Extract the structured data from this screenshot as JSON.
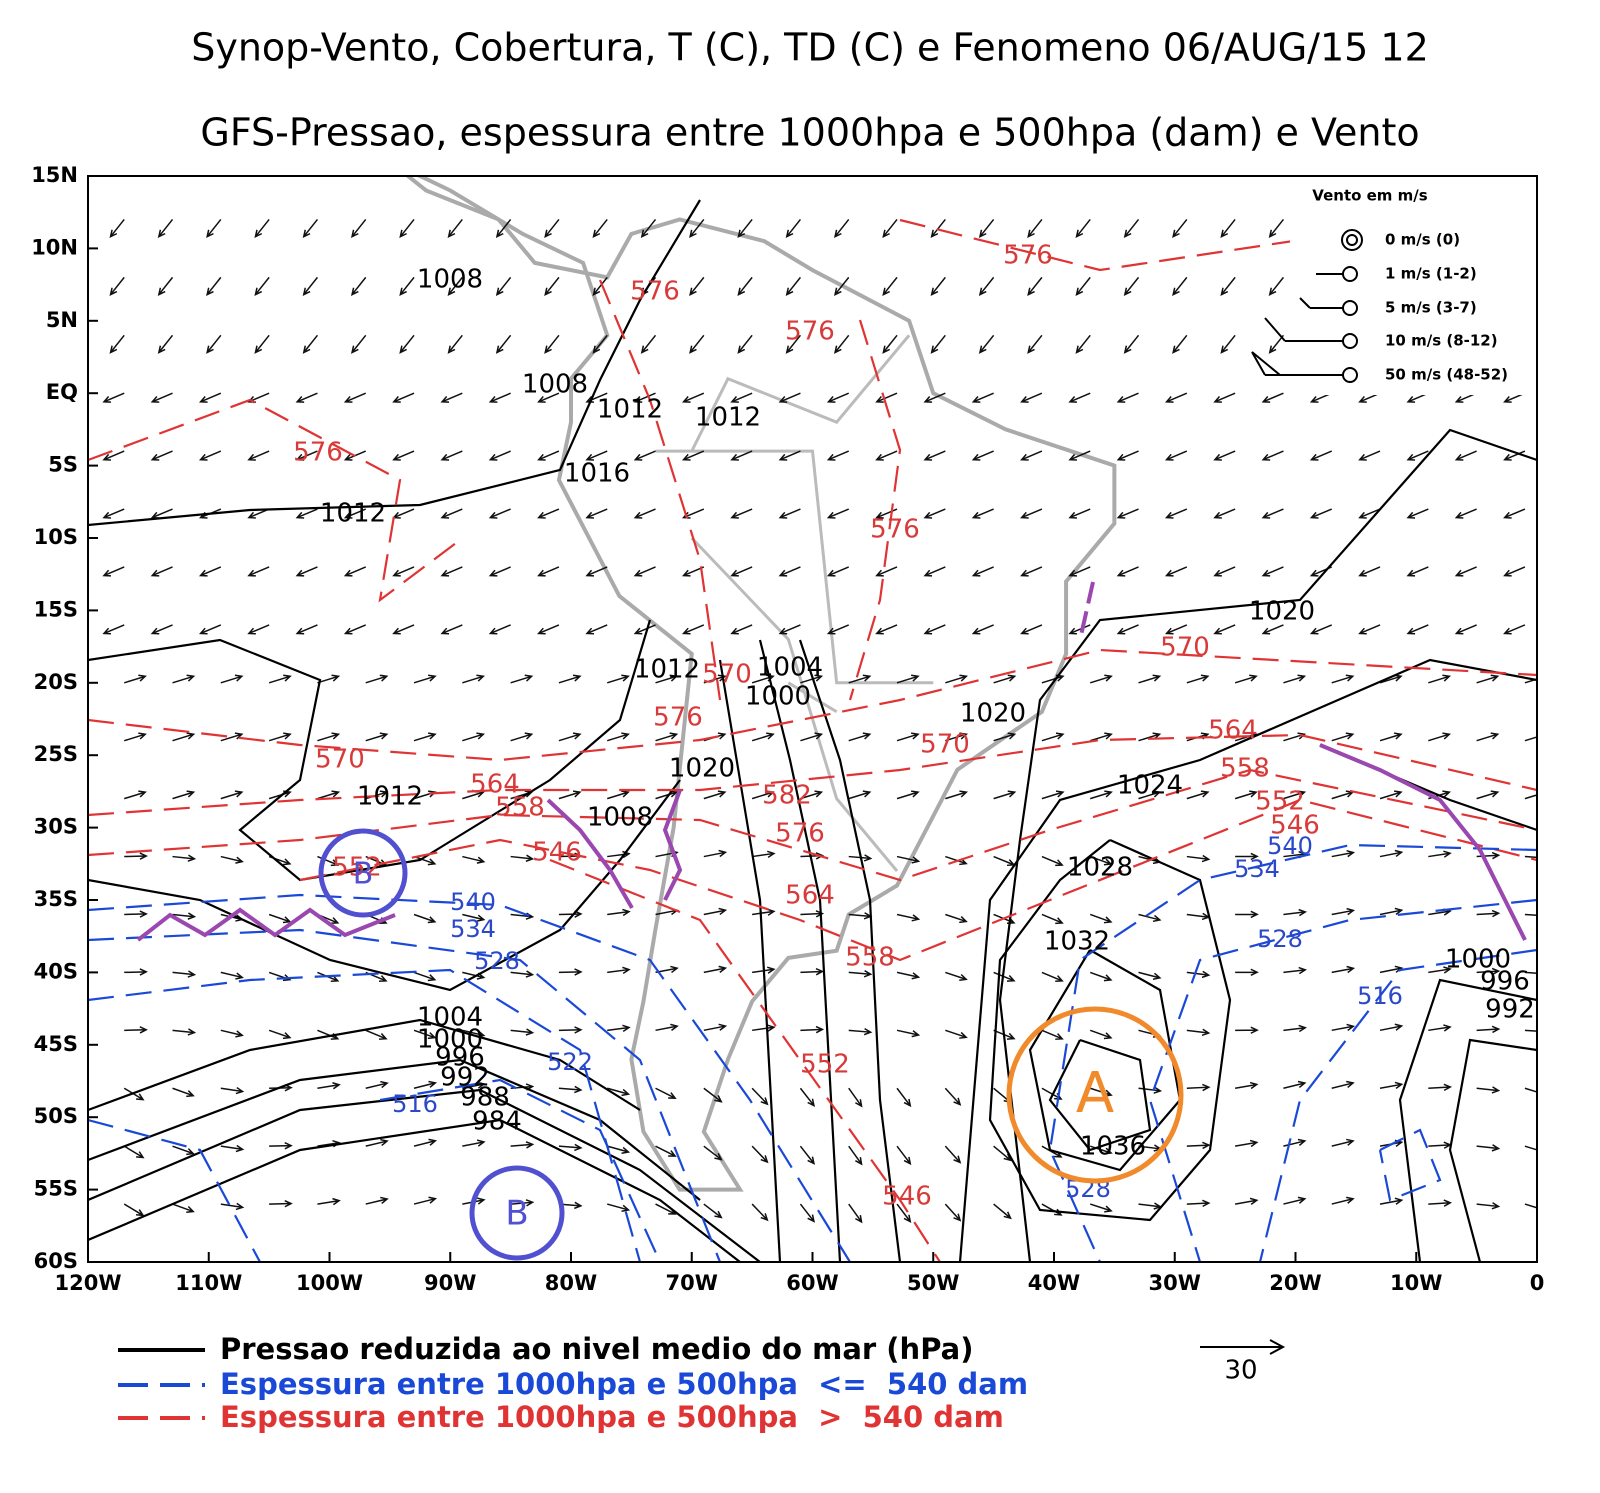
{
  "title": [
    "Synop-Vento, Cobertura, T (C), TD (C) e Fenomeno 06/AUG/15 12",
    "GFS-Pressao, espessura entre 1000hpa e 500hpa (dam) e Vento"
  ],
  "map": {
    "lat_labels": [
      "15N",
      "10N",
      "5N",
      "EQ",
      "5S",
      "10S",
      "15S",
      "20S",
      "25S",
      "30S",
      "35S",
      "40S",
      "45S",
      "50S",
      "55S",
      "60S"
    ],
    "lon_labels": [
      "120W",
      "110W",
      "100W",
      "90W",
      "80W",
      "70W",
      "60W",
      "50W",
      "40W",
      "30W",
      "20W",
      "10W",
      "0"
    ]
  },
  "pressure_labels": [
    "1008",
    "1008",
    "1012",
    "1012",
    "1016",
    "1012",
    "1020",
    "1012",
    "1004",
    "1000",
    "1020",
    "1020",
    "1024",
    "1012",
    "1008",
    "1028",
    "1032",
    "1000",
    "996",
    "992",
    "1004",
    "1000",
    "996",
    "992",
    "988",
    "984",
    "1036"
  ],
  "thickness_high_labels": [
    "576",
    "576",
    "576",
    "576",
    "576",
    "570",
    "570",
    "576",
    "570",
    "570",
    "564",
    "558",
    "552",
    "546",
    "564",
    "558",
    "582",
    "576",
    "546",
    "564",
    "558",
    "552",
    "546",
    "552"
  ],
  "thickness_low_labels": [
    "540",
    "534",
    "540",
    "534",
    "528",
    "528",
    "516",
    "522",
    "516",
    "528"
  ],
  "systems": [
    "B",
    "B",
    "A"
  ],
  "wind_legend": {
    "title": "Vento em m/s",
    "entries": [
      "0 m/s (0)",
      "1 m/s (1-2)",
      "5 m/s (3-7)",
      "10 m/s (8-12)",
      "50 m/s (48-52)"
    ]
  },
  "legend": [
    "Pressao reduzida ao nivel medio do mar (hPa)",
    "Espessura entre 1000hpa e 500hpa  <=  540 dam",
    "Espessura entre 1000hpa e 500hpa  >  540 dam"
  ],
  "scale": "30"
}
